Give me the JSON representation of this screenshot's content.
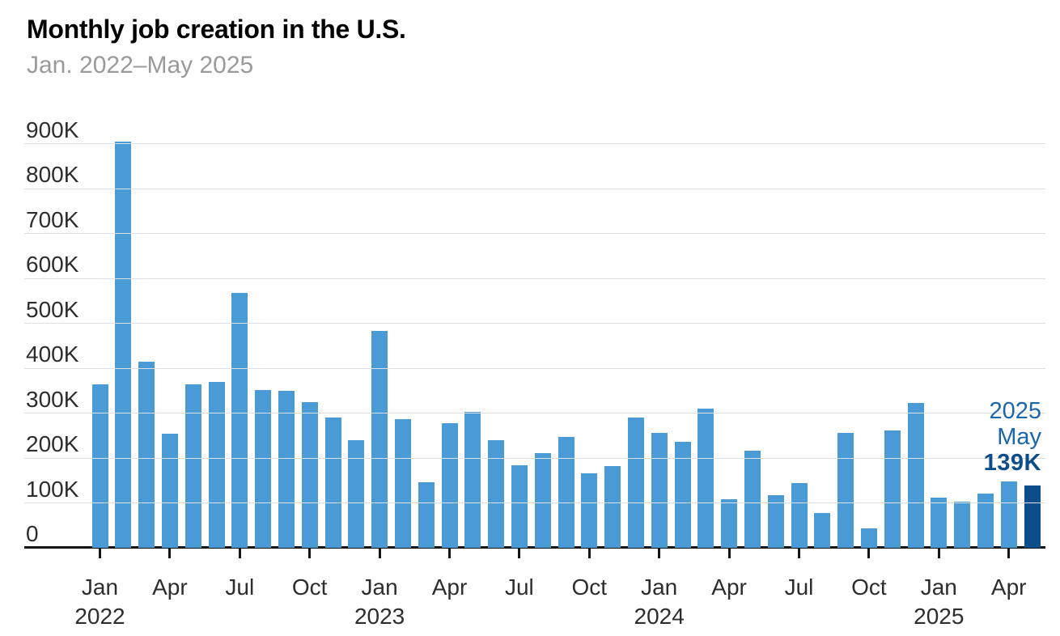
{
  "header": {
    "title": "Monthly job creation in the U.S.",
    "subtitle": "Jan. 2022–May 2025"
  },
  "chart_data": {
    "type": "bar",
    "title": "Monthly job creation in the U.S.",
    "subtitle": "Jan. 2022–May 2025",
    "unit": "jobs added per month, thousands",
    "ylim": [
      0,
      900
    ],
    "grid": true,
    "yticks": [
      "0",
      "100K",
      "200K",
      "300K",
      "400K",
      "500K",
      "600K",
      "700K",
      "800K",
      "900K"
    ],
    "categories": [
      "Jan 2022",
      "Feb 2022",
      "Mar 2022",
      "Apr 2022",
      "May 2022",
      "Jun 2022",
      "Jul 2022",
      "Aug 2022",
      "Sep 2022",
      "Oct 2022",
      "Nov 2022",
      "Dec 2022",
      "Jan 2023",
      "Feb 2023",
      "Mar 2023",
      "Apr 2023",
      "May 2023",
      "Jun 2023",
      "Jul 2023",
      "Aug 2023",
      "Sep 2023",
      "Oct 2023",
      "Nov 2023",
      "Dec 2023",
      "Jan 2024",
      "Feb 2024",
      "Mar 2024",
      "Apr 2024",
      "May 2024",
      "Jun 2024",
      "Jul 2024",
      "Aug 2024",
      "Sep 2024",
      "Oct 2024",
      "Nov 2024",
      "Dec 2024",
      "Jan 2025",
      "Feb 2025",
      "Mar 2025",
      "Apr 2025",
      "May 2025"
    ],
    "values": [
      364,
      904,
      414,
      254,
      364,
      370,
      568,
      352,
      350,
      324,
      290,
      239,
      482,
      287,
      146,
      278,
      303,
      240,
      184,
      210,
      246,
      165,
      182,
      290,
      256,
      236,
      310,
      108,
      216,
      118,
      144,
      78,
      255,
      44,
      261,
      323,
      111,
      102,
      120,
      147,
      139
    ],
    "xticks": [
      {
        "index": 0,
        "label": "Jan",
        "year": "2022"
      },
      {
        "index": 3,
        "label": "Apr"
      },
      {
        "index": 6,
        "label": "Jul"
      },
      {
        "index": 9,
        "label": "Oct"
      },
      {
        "index": 12,
        "label": "Jan",
        "year": "2023"
      },
      {
        "index": 15,
        "label": "Apr"
      },
      {
        "index": 18,
        "label": "Jul"
      },
      {
        "index": 21,
        "label": "Oct"
      },
      {
        "index": 24,
        "label": "Jan",
        "year": "2024"
      },
      {
        "index": 27,
        "label": "Apr"
      },
      {
        "index": 30,
        "label": "Jul"
      },
      {
        "index": 33,
        "label": "Oct"
      },
      {
        "index": 36,
        "label": "Jan",
        "year": "2025"
      },
      {
        "index": 39,
        "label": "Apr"
      }
    ],
    "highlight": {
      "index": 40,
      "year": "2025",
      "month": "May",
      "value_label": "139K"
    },
    "colors": {
      "bar": "#4a9ad6",
      "highlight_bar": "#0b4e8b",
      "gridline": "#dde1e6",
      "axis": "#151515",
      "label": "#2d2d2d",
      "title": "#000000",
      "subtitle": "#9a9a9a",
      "annotation_text": "#1b66ae",
      "annotation_value": "#0e4d8c"
    }
  }
}
